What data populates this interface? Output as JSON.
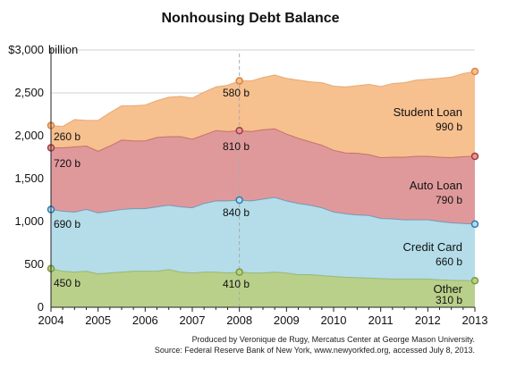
{
  "chart_data": {
    "type": "area",
    "stacked": true,
    "title": "Nonhousing Debt Balance",
    "y_unit_label": "billion",
    "ylim": [
      0,
      3000
    ],
    "y_ticks": [
      "0",
      "500",
      "1,000",
      "1,500",
      "2,000",
      "2,500",
      "$3,000"
    ],
    "x_ticks": [
      "2004",
      "2005",
      "2006",
      "2007",
      "2008",
      "2009",
      "2010",
      "2011",
      "2012",
      "2013"
    ],
    "x": [
      2004.0,
      2004.25,
      2004.5,
      2004.75,
      2005.0,
      2005.25,
      2005.5,
      2005.75,
      2006.0,
      2006.25,
      2006.5,
      2006.75,
      2007.0,
      2007.25,
      2007.5,
      2007.75,
      2008.0,
      2008.25,
      2008.5,
      2008.75,
      2009.0,
      2009.25,
      2009.5,
      2009.75,
      2010.0,
      2010.25,
      2010.5,
      2010.75,
      2011.0,
      2011.25,
      2011.5,
      2011.75,
      2012.0,
      2012.25,
      2012.5,
      2012.75,
      2013.0
    ],
    "series": [
      {
        "name": "Other",
        "color": "#b9d08a",
        "line_color": "#7c9a3c",
        "values": [
          450,
          420,
          410,
          420,
          390,
          400,
          410,
          420,
          420,
          420,
          440,
          410,
          400,
          410,
          410,
          400,
          410,
          400,
          400,
          410,
          400,
          380,
          380,
          370,
          360,
          350,
          345,
          340,
          335,
          330,
          330,
          330,
          330,
          320,
          315,
          312,
          310
        ]
      },
      {
        "name": "Credit Card",
        "color": "#b4dde9",
        "line_color": "#2c7bb3",
        "values": [
          690,
          700,
          700,
          720,
          710,
          720,
          730,
          730,
          730,
          750,
          750,
          760,
          760,
          800,
          830,
          840,
          840,
          840,
          860,
          870,
          840,
          830,
          810,
          790,
          750,
          740,
          730,
          730,
          700,
          700,
          690,
          690,
          690,
          680,
          670,
          665,
          660
        ]
      },
      {
        "name": "Auto Loan",
        "color": "#e0999b",
        "line_color": "#a43c3c",
        "values": [
          720,
          740,
          760,
          740,
          720,
          760,
          810,
          790,
          790,
          810,
          800,
          820,
          800,
          800,
          820,
          810,
          810,
          810,
          810,
          800,
          780,
          760,
          740,
          730,
          720,
          710,
          720,
          710,
          710,
          720,
          730,
          740,
          740,
          750,
          760,
          780,
          790
        ]
      },
      {
        "name": "Student Loan",
        "color": "#f7c08f",
        "line_color": "#d9843f",
        "values": [
          260,
          250,
          320,
          300,
          360,
          390,
          400,
          410,
          420,
          430,
          460,
          470,
          480,
          500,
          510,
          540,
          580,
          590,
          610,
          630,
          650,
          680,
          700,
          730,
          750,
          770,
          790,
          820,
          830,
          860,
          870,
          890,
          900,
          920,
          940,
          970,
          990
        ]
      }
    ],
    "annotations": {
      "start": [
        "260 b",
        "720 b",
        "690 b",
        "450 b"
      ],
      "mid": [
        "580 b",
        "810 b",
        "840 b",
        "410 b"
      ],
      "end": [
        "990 b",
        "790 b",
        "660 b",
        "310 b"
      ]
    },
    "marker_x": 2008.0
  },
  "footer": {
    "line1": "Produced by Veronique de Rugy, Mercatus Center at George Mason University.",
    "line2": "Source: Federal Reserve Bank of New York, www.newyorkfed.org, accessed July 8, 2013."
  }
}
